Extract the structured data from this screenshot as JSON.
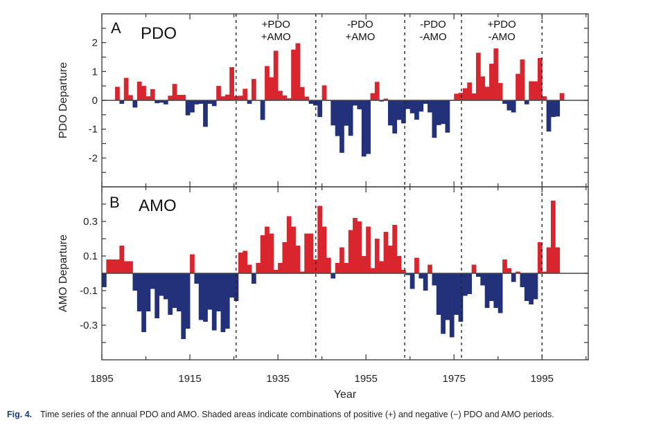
{
  "caption": {
    "figure_number": "Fig. 4.",
    "text": "Time series of the annual PDO and AMO. Shaded areas indicate combinations of positive (+) and negative (−) PDO and AMO periods."
  },
  "colors": {
    "positive": "#d9262e",
    "negative": "#23307a",
    "axis": "#333333",
    "zero_line": "#444444"
  },
  "chart_data": [
    {
      "type": "bar",
      "panel": "A",
      "title": "PDO",
      "xlabel": "Year",
      "ylabel": "PDO Departure",
      "xlim": [
        1895,
        2005.5
      ],
      "ylim": [
        -3,
        3
      ],
      "x_tick_labels": [
        "1895",
        "1915",
        "1935",
        "1955",
        "1975",
        "1995"
      ],
      "y_tick_labels": [
        "2",
        "1",
        "0",
        "-1",
        "-2"
      ],
      "y_tick_values": [
        2,
        1,
        0,
        -1,
        -2
      ],
      "grid": false,
      "start_year": 1898,
      "values": [
        0.47,
        -0.12,
        0.78,
        0.18,
        -0.25,
        0.65,
        0.5,
        0.14,
        0.39,
        -0.1,
        -0.08,
        -0.14,
        0.16,
        0.57,
        0.19,
        0.19,
        -0.52,
        -0.42,
        -0.14,
        -0.12,
        -0.92,
        -0.12,
        -0.2,
        0.5,
        0.14,
        0.2,
        1.15,
        0.15,
        0.16,
        0.4,
        -0.12,
        0.74,
        -0.01,
        -0.68,
        1.19,
        0.8,
        1.72,
        0.33,
        0.17,
        0.07,
        1.76,
        1.98,
        0.46,
        0.13,
        -0.12,
        -0.18,
        -0.58,
        0.52,
        -0.02,
        -0.87,
        -1.24,
        -1.82,
        -0.88,
        -1.23,
        -0.18,
        -0.31,
        -1.95,
        -1.86,
        0.25,
        0.64,
        -0.04,
        0.06,
        -0.87,
        -1.15,
        -0.68,
        -0.8,
        -0.3,
        -0.45,
        -0.67,
        -0.39,
        -0.12,
        -0.42,
        -1.3,
        -0.86,
        -0.82,
        -1.12,
        0.02,
        0.23,
        0.26,
        0.42,
        0.62,
        0.24,
        1.65,
        0.83,
        0.47,
        1.27,
        1.8,
        0.6,
        -0.12,
        -0.35,
        -0.42,
        0.92,
        1.42,
        -0.14,
        0.66,
        0.66,
        1.47,
        0.14,
        -1.08,
        -0.58,
        -0.56,
        0.25
      ],
      "phases": [
        {
          "line1": "+PDO",
          "line2": "+AMO",
          "start": 1925.5,
          "end": 1943.6
        },
        {
          "line1": "-PDO",
          "line2": "+AMO",
          "start": 1943.6,
          "end": 1963.8
        },
        {
          "line1": "-PDO",
          "line2": "-AMO",
          "start": 1963.8,
          "end": 1976.7
        },
        {
          "line1": "+PDO",
          "line2": "-AMO",
          "start": 1976.7,
          "end": 1995
        }
      ]
    },
    {
      "type": "bar",
      "panel": "B",
      "title": "AMO",
      "xlabel": "Year",
      "ylabel": "AMO Departure",
      "xlim": [
        1895,
        2005.5
      ],
      "ylim": [
        -0.5,
        0.5
      ],
      "y_tick_labels": [
        "0.3",
        "0.1",
        "-0.1",
        "-0.3"
      ],
      "y_tick_values": [
        0.3,
        0.1,
        -0.1,
        -0.3
      ],
      "grid": false,
      "start_year": 1895,
      "values": [
        -0.08,
        0.08,
        0.08,
        0.08,
        0.16,
        0.07,
        0.07,
        -0.1,
        -0.22,
        -0.34,
        -0.22,
        -0.09,
        -0.26,
        -0.13,
        -0.15,
        -0.24,
        -0.2,
        -0.22,
        -0.38,
        -0.32,
        0.11,
        -0.06,
        -0.27,
        -0.28,
        -0.21,
        -0.33,
        -0.22,
        -0.34,
        -0.32,
        -0.14,
        -0.16,
        0.12,
        0.13,
        0.05,
        -0.06,
        0.06,
        0.22,
        0.27,
        0.23,
        0.02,
        0.06,
        0.18,
        0.33,
        0.27,
        0.16,
        0.01,
        0.23,
        0.23,
        0.08,
        0.39,
        0.27,
        0.09,
        -0.03,
        0.06,
        0.15,
        0.06,
        0.25,
        0.32,
        0.3,
        0.1,
        0.27,
        0.03,
        0.2,
        0.07,
        0.24,
        0.16,
        0.28,
        0.1,
        0.02,
        -0.01,
        -0.09,
        0.09,
        -0.03,
        -0.1,
        0.05,
        -0.07,
        -0.24,
        -0.35,
        -0.27,
        -0.37,
        -0.24,
        -0.28,
        -0.13,
        -0.12,
        0.05,
        -0.02,
        -0.07,
        -0.2,
        -0.16,
        -0.2,
        -0.23,
        0.08,
        0.03,
        -0.05,
        0.01,
        -0.08,
        -0.16,
        -0.18,
        -0.15,
        0.18,
        0.01,
        0.15,
        0.42,
        0.15
      ]
    }
  ]
}
